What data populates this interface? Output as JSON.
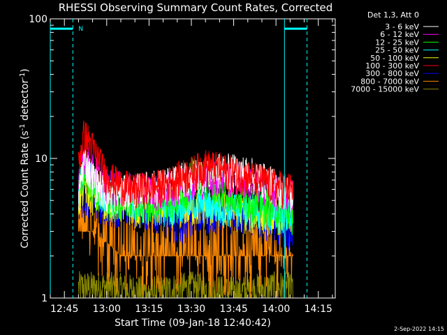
{
  "chart_data": {
    "type": "line",
    "title": "RHESSI Observing Summary Count Rates, Corrected",
    "xlabel": "Start Time (09-Jan-18 12:40:42)",
    "ylabel_main": "Corrected Count Rate (s",
    "ylabel_sup1": "-1",
    "ylabel_mid": " detector",
    "ylabel_sup2": "-1",
    "ylabel_end": ")",
    "yscale": "log",
    "ylim": [
      1,
      100
    ],
    "xlim": [
      "12:40",
      "14:21"
    ],
    "y_ticks": [
      {
        "value": 1,
        "label": "1"
      },
      {
        "value": 10,
        "label": "10"
      },
      {
        "value": 100,
        "label": "100"
      }
    ],
    "x_ticks": [
      {
        "value": "12:45",
        "label": "12:45"
      },
      {
        "value": "13:00",
        "label": "13:00"
      },
      {
        "value": "13:15",
        "label": "13:15"
      },
      {
        "value": "13:30",
        "label": "13:30"
      },
      {
        "value": "13:45",
        "label": "13:45"
      },
      {
        "value": "14:00",
        "label": "14:00"
      },
      {
        "value": "14:15",
        "label": "14:15"
      }
    ],
    "legend_title": "Det 1,3, Att 0",
    "legend_position": "top-right",
    "series": [
      {
        "name": "3 - 6 keV",
        "color": "#ffffff",
        "points": [
          [
            "12:50",
            5.0
          ],
          [
            "12:52",
            10.0
          ],
          [
            "12:54",
            8.0
          ],
          [
            "12:56",
            7.0
          ],
          [
            "13:00",
            5.5
          ],
          [
            "13:10",
            6.0
          ],
          [
            "13:20",
            6.5
          ],
          [
            "13:30",
            7.5
          ],
          [
            "13:40",
            8.5
          ],
          [
            "13:50",
            8.0
          ],
          [
            "14:00",
            6.5
          ],
          [
            "14:06",
            5.5
          ]
        ]
      },
      {
        "name": "6 - 12 keV",
        "color": "#ff00ff",
        "points": [
          [
            "12:50",
            7.0
          ],
          [
            "12:52",
            11.0
          ],
          [
            "12:54",
            9.0
          ],
          [
            "12:56",
            8.0
          ],
          [
            "13:00",
            6.5
          ],
          [
            "13:10",
            6.0
          ],
          [
            "13:20",
            6.0
          ],
          [
            "13:30",
            7.0
          ],
          [
            "13:40",
            7.5
          ],
          [
            "13:50",
            7.0
          ],
          [
            "14:00",
            6.0
          ],
          [
            "14:06",
            5.5
          ]
        ]
      },
      {
        "name": "12 - 25 keV",
        "color": "#00ff00",
        "points": [
          [
            "12:50",
            5.5
          ],
          [
            "12:52",
            8.0
          ],
          [
            "12:55",
            6.5
          ],
          [
            "13:00",
            5.0
          ],
          [
            "13:10",
            5.0
          ],
          [
            "13:20",
            4.5
          ],
          [
            "13:28",
            5.5
          ],
          [
            "13:30",
            8.0
          ],
          [
            "13:40",
            6.0
          ],
          [
            "13:50",
            5.0
          ],
          [
            "14:00",
            4.5
          ],
          [
            "14:06",
            4.0
          ]
        ]
      },
      {
        "name": "25 - 50 keV",
        "color": "#00ffff",
        "points": [
          [
            "12:50",
            6.0
          ],
          [
            "12:52",
            9.0
          ],
          [
            "12:55",
            7.0
          ],
          [
            "13:00",
            5.5
          ],
          [
            "13:10",
            5.0
          ],
          [
            "13:20",
            4.5
          ],
          [
            "13:30",
            5.0
          ],
          [
            "13:40",
            4.5
          ],
          [
            "13:50",
            4.5
          ],
          [
            "14:00",
            4.0
          ],
          [
            "14:06",
            4.0
          ]
        ]
      },
      {
        "name": "50 - 100 keV",
        "color": "#ffff00",
        "points": [
          [
            "12:50",
            5.0
          ],
          [
            "12:52",
            6.5
          ],
          [
            "12:55",
            5.5
          ],
          [
            "13:00",
            5.0
          ],
          [
            "13:10",
            4.5
          ],
          [
            "13:20",
            4.5
          ],
          [
            "13:30",
            4.5
          ],
          [
            "13:40",
            4.5
          ],
          [
            "13:50",
            4.0
          ],
          [
            "14:00",
            4.0
          ],
          [
            "14:06",
            4.0
          ]
        ]
      },
      {
        "name": "100 - 300 keV",
        "color": "#ff0000",
        "points": [
          [
            "12:50",
            9.0
          ],
          [
            "12:52",
            15.0
          ],
          [
            "12:54",
            13.0
          ],
          [
            "12:56",
            11.0
          ],
          [
            "12:58",
            9.0
          ],
          [
            "13:00",
            7.5
          ],
          [
            "13:05",
            6.5
          ],
          [
            "13:10",
            6.0
          ],
          [
            "13:20",
            6.5
          ],
          [
            "13:30",
            8.0
          ],
          [
            "13:35",
            9.0
          ],
          [
            "13:40",
            8.5
          ],
          [
            "13:45",
            8.0
          ],
          [
            "13:50",
            7.5
          ],
          [
            "13:55",
            7.0
          ],
          [
            "14:00",
            6.5
          ],
          [
            "14:06",
            6.0
          ]
        ]
      },
      {
        "name": "300 - 800 keV",
        "color": "#0000ff",
        "points": [
          [
            "12:50",
            5.0
          ],
          [
            "12:52",
            5.5
          ],
          [
            "12:55",
            5.0
          ],
          [
            "13:00",
            4.5
          ],
          [
            "13:10",
            4.5
          ],
          [
            "13:20",
            4.0
          ],
          [
            "13:26",
            3.0
          ],
          [
            "13:30",
            4.0
          ],
          [
            "13:40",
            4.0
          ],
          [
            "13:50",
            4.0
          ],
          [
            "14:00",
            3.5
          ],
          [
            "14:06",
            3.0
          ]
        ]
      },
      {
        "name": "800 - 7000 keV",
        "color": "#ff8800",
        "points": [
          [
            "12:50",
            3.0
          ],
          [
            "12:55",
            3.0
          ],
          [
            "13:00",
            2.5
          ],
          [
            "13:05",
            2.0
          ],
          [
            "13:15",
            2.0
          ],
          [
            "13:25",
            2.0
          ],
          [
            "13:35",
            2.0
          ],
          [
            "13:45",
            2.0
          ],
          [
            "13:55",
            2.0
          ],
          [
            "14:06",
            2.0
          ]
        ]
      },
      {
        "name": "7000 - 15000 keV",
        "color": "#888800",
        "points": [
          [
            "12:50",
            1.2
          ],
          [
            "13:00",
            1.2
          ],
          [
            "13:15",
            1.1
          ],
          [
            "13:30",
            1.2
          ],
          [
            "13:45",
            1.1
          ],
          [
            "14:00",
            1.2
          ],
          [
            "14:06",
            1.2
          ]
        ]
      }
    ],
    "annotations": {
      "flag_label": "N",
      "flag_level": 85,
      "flag_intervals": [
        [
          "12:40",
          "12:48"
        ],
        [
          "14:03",
          "14:11"
        ]
      ],
      "night_boundaries_solid": [
        "12:40",
        "14:03"
      ],
      "night_boundaries_dashed": [
        "12:48",
        "14:11"
      ],
      "color": "#00ffff"
    }
  },
  "footer": {
    "date_stamp": "2-Sep-2022 14:15"
  }
}
